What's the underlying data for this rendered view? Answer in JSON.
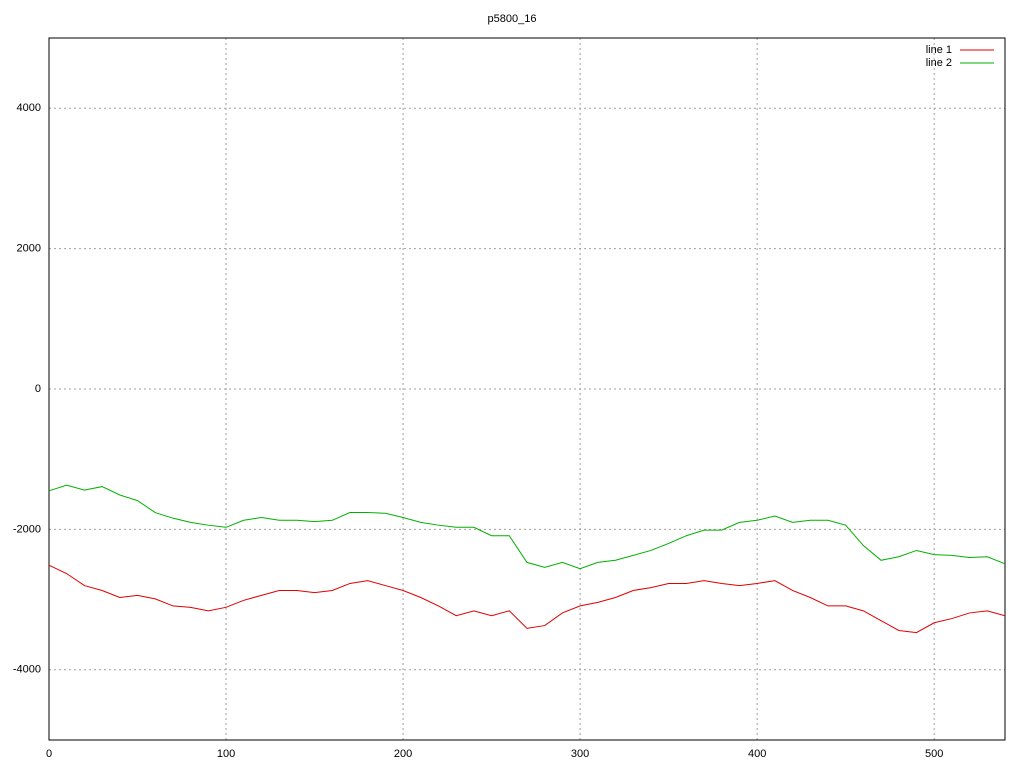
{
  "chart_data": {
    "type": "line",
    "title": "p5800_16",
    "x": [
      0,
      10,
      20,
      30,
      40,
      50,
      60,
      70,
      80,
      90,
      100,
      110,
      120,
      130,
      140,
      150,
      160,
      170,
      180,
      190,
      200,
      210,
      220,
      230,
      240,
      250,
      260,
      270,
      280,
      290,
      300,
      310,
      320,
      330,
      340,
      350,
      360,
      370,
      380,
      390,
      400,
      410,
      420,
      430,
      440,
      450,
      460,
      470,
      480,
      490,
      500,
      510,
      520,
      530,
      540
    ],
    "series": [
      {
        "name": "line 1",
        "color": "#e00000",
        "values": [
          -2510,
          -2630,
          -2800,
          -2870,
          -2970,
          -2940,
          -2990,
          -3090,
          -3110,
          -3160,
          -3110,
          -3010,
          -2940,
          -2870,
          -2870,
          -2900,
          -2870,
          -2770,
          -2730,
          -2800,
          -2870,
          -2970,
          -3090,
          -3230,
          -3160,
          -3230,
          -3160,
          -3410,
          -3370,
          -3190,
          -3090,
          -3040,
          -2970,
          -2870,
          -2830,
          -2770,
          -2770,
          -2730,
          -2770,
          -2800,
          -2770,
          -2730,
          -2870,
          -2970,
          -3090,
          -3090,
          -3160,
          -3300,
          -3440,
          -3470,
          -3330,
          -3270,
          -3190,
          -3160,
          -3230
        ]
      },
      {
        "name": "line 2",
        "color": "#00b000",
        "values": [
          -1450,
          -1370,
          -1440,
          -1390,
          -1510,
          -1590,
          -1760,
          -1840,
          -1900,
          -1940,
          -1970,
          -1870,
          -1830,
          -1870,
          -1870,
          -1890,
          -1870,
          -1760,
          -1760,
          -1770,
          -1830,
          -1900,
          -1940,
          -1970,
          -1970,
          -2090,
          -2090,
          -2470,
          -2540,
          -2470,
          -2560,
          -2470,
          -2440,
          -2370,
          -2300,
          -2200,
          -2090,
          -2010,
          -2010,
          -1900,
          -1870,
          -1810,
          -1900,
          -1870,
          -1870,
          -1940,
          -2230,
          -2440,
          -2390,
          -2300,
          -2360,
          -2370,
          -2400,
          -2390,
          -2490
        ]
      }
    ],
    "xlim": [
      0,
      540
    ],
    "xticks": [
      0,
      100,
      200,
      300,
      400,
      500
    ],
    "ylim": [
      -5000,
      5000
    ],
    "yticks": [
      -4000,
      -2000,
      0,
      2000,
      4000
    ],
    "grid": true,
    "legend": "top-right"
  }
}
